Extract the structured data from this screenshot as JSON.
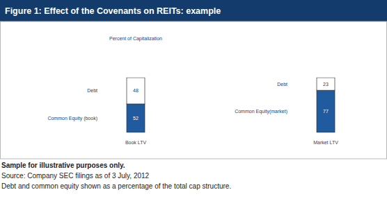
{
  "title": "Figure 1: Effect of the Covenants on REITs: example",
  "notes": [
    "Sample for illustrative purposes only.",
    "Source: Company SEC filings as of 3 July, 2012",
    "Debt and common equity shown as a percentage of the total cap structure."
  ],
  "chart_data": [
    {
      "type": "bar",
      "stacked": true,
      "data_labels": true,
      "tick_labels": false,
      "y_label": "Percent of Capitalization",
      "categories": [
        "Book LTV"
      ],
      "ylim": [
        0,
        100
      ],
      "series": [
        {
          "name": "Common Equity (book)",
          "color": "#1f5b9e",
          "values": [
            52
          ]
        },
        {
          "name": "Debt",
          "color": "#ffffff",
          "values": [
            48
          ]
        }
      ]
    },
    {
      "type": "bar",
      "stacked": true,
      "data_labels": true,
      "tick_labels": false,
      "categories": [
        "Market LTV"
      ],
      "ylim": [
        0,
        100
      ],
      "series": [
        {
          "name": "Common Equity(market)",
          "color": "#1f5b9e",
          "values": [
            77
          ]
        },
        {
          "name": "Debt",
          "color": "#ffffff",
          "values": [
            23
          ]
        }
      ]
    }
  ]
}
